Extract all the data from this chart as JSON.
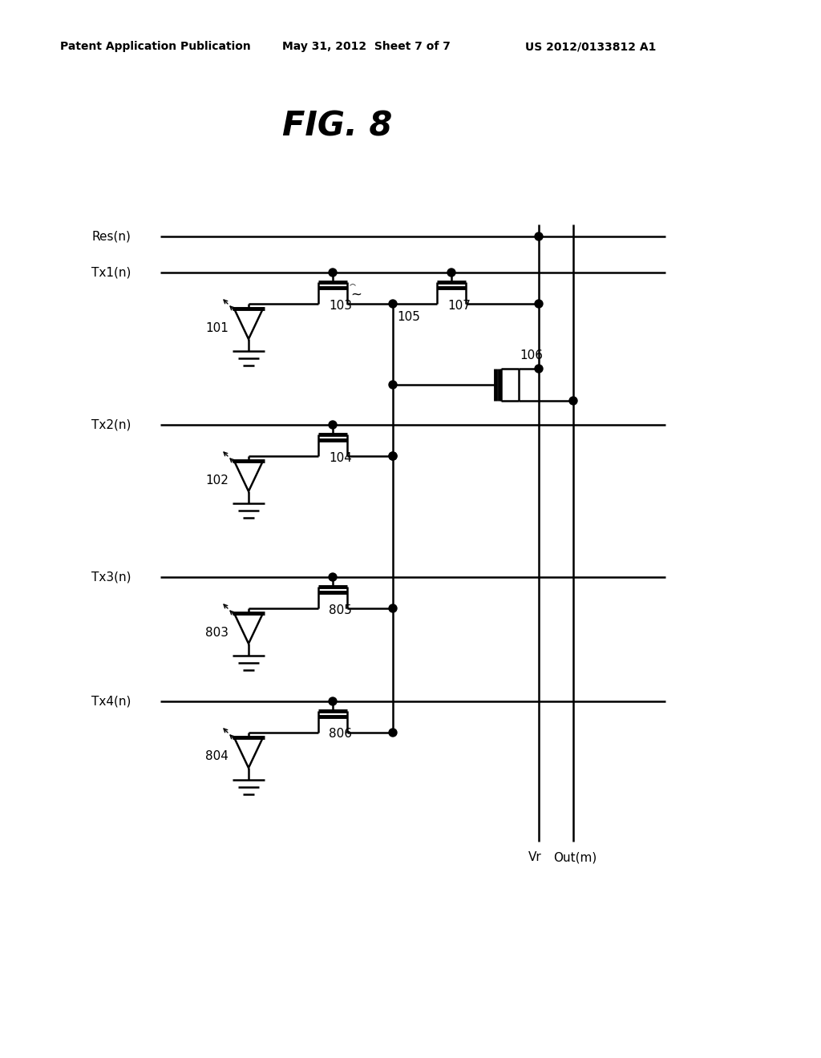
{
  "title": "FIG. 8",
  "header_left": "Patent Application Publication",
  "header_center": "May 31, 2012  Sheet 7 of 7",
  "header_right": "US 2012/0133812 A1",
  "bg_color": "#ffffff",
  "line_color": "#000000",
  "labels": {
    "Res_n": "Res(n)",
    "Tx1_n": "Tx1(n)",
    "Tx2_n": "Tx2(n)",
    "Tx3_n": "Tx3(n)",
    "Tx4_n": "Tx4(n)",
    "n101": "101",
    "n102": "102",
    "n103": "103",
    "n104": "104",
    "n105": "105",
    "n106": "106",
    "n107": "107",
    "n803": "803",
    "n804": "804",
    "n805": "805",
    "n806": "806",
    "Vr": "Vr",
    "Out_m": "Out(m)"
  }
}
